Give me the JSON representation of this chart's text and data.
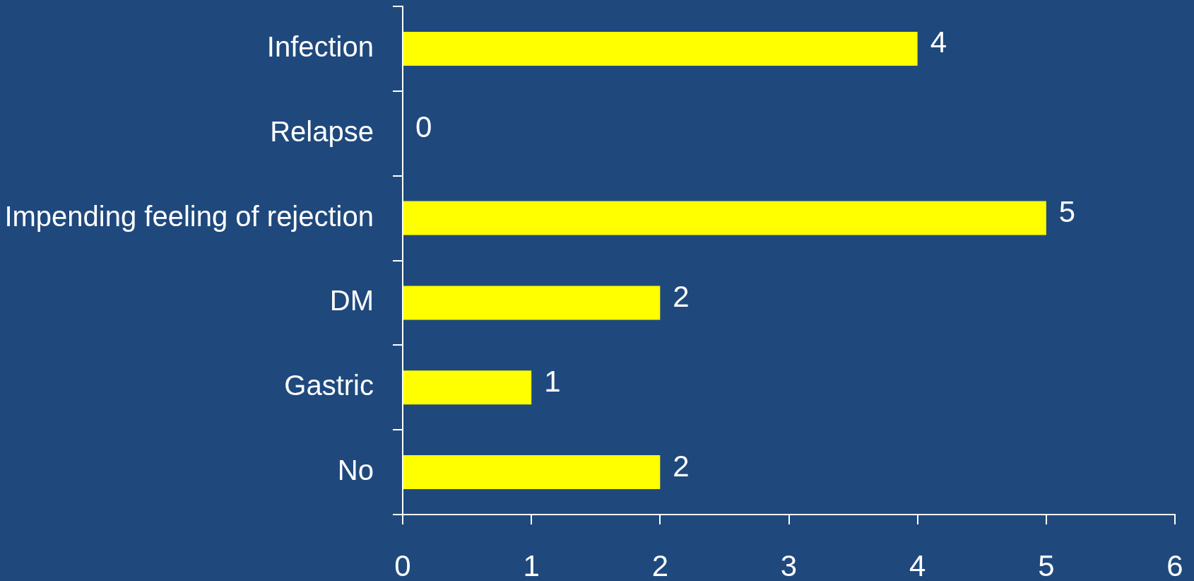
{
  "chart_data": {
    "type": "bar",
    "orientation": "horizontal",
    "categories": [
      "Infection",
      "Relapse",
      "Impending feeling of rejection",
      "DM",
      "Gastric",
      "No"
    ],
    "values": [
      4,
      0,
      5,
      2,
      1,
      2
    ],
    "color": "#ffff00",
    "xlim": [
      0,
      6
    ],
    "xticks": [
      0,
      1,
      2,
      3,
      4,
      5,
      6
    ],
    "data_labels": true
  }
}
